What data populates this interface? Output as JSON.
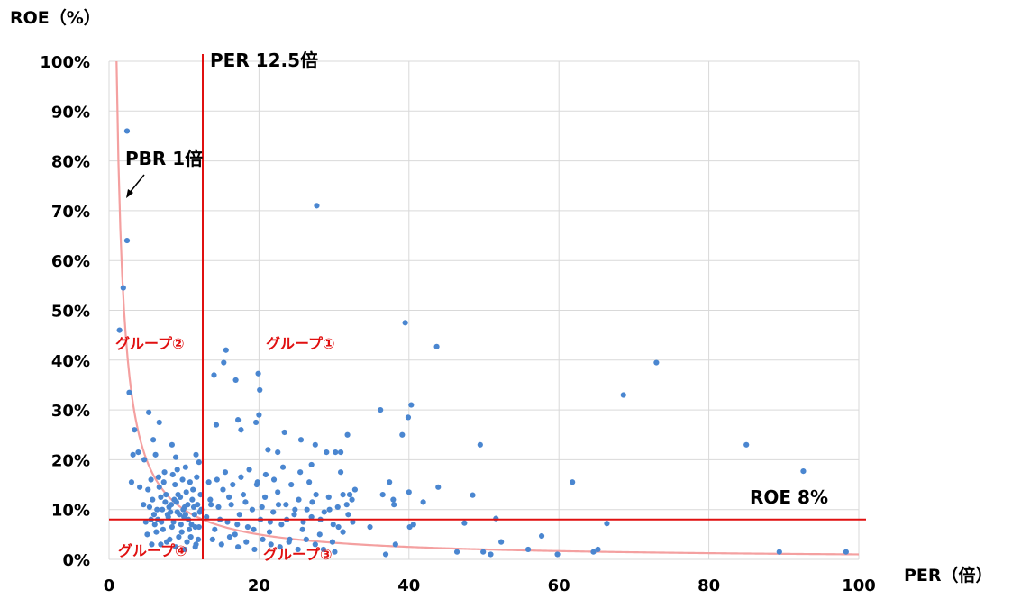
{
  "chart_data": {
    "type": "scatter",
    "title": "",
    "xlabel": "PER（倍）",
    "ylabel": "ROE（%）",
    "xlim": [
      0,
      100
    ],
    "ylim": [
      0,
      100
    ],
    "x_ticks": [
      "0",
      "20",
      "40",
      "60",
      "80",
      "100"
    ],
    "y_ticks": [
      "0%",
      "10%",
      "20%",
      "30%",
      "40%",
      "50%",
      "60%",
      "70%",
      "80%",
      "90%",
      "100%"
    ],
    "grid": true,
    "colors": {
      "points": "#4a86d0",
      "reference_lines": "#e01010",
      "pbr_curve": "#f4a0a0",
      "grid": "#d9d9d9"
    },
    "reference_lines": {
      "vertical": {
        "x": 12.5,
        "label": "PER 12.5倍"
      },
      "horizontal": {
        "y": 8,
        "label": "ROE 8%"
      }
    },
    "curve": {
      "label": "PBR 1倍",
      "relation": "ROE = 100 / PER"
    },
    "group_labels": [
      "グループ①",
      "グループ②",
      "グループ③",
      "グループ④"
    ],
    "series": [
      {
        "points": [
          [
            2.4,
            86
          ],
          [
            27.7,
            71
          ],
          [
            2.4,
            64
          ],
          [
            1.9,
            54.5
          ],
          [
            1.4,
            46
          ],
          [
            39.5,
            47.5
          ],
          [
            43.7,
            42.7
          ],
          [
            73,
            39.5
          ],
          [
            68.6,
            33
          ],
          [
            85,
            23
          ],
          [
            92.6,
            17.7
          ],
          [
            61.8,
            15.5
          ],
          [
            98.3,
            1.5
          ],
          [
            89.4,
            1.5
          ],
          [
            64.6,
            1.5
          ],
          [
            65.2,
            2
          ],
          [
            59.8,
            1
          ],
          [
            55.9,
            2
          ],
          [
            57.7,
            4.7
          ],
          [
            66.4,
            7.2
          ],
          [
            51.6,
            8.2
          ],
          [
            52.3,
            3.5
          ],
          [
            50.9,
            1
          ],
          [
            49.9,
            1.5
          ],
          [
            49.5,
            23
          ],
          [
            48.5,
            12.9
          ],
          [
            47.4,
            7.3
          ],
          [
            46.4,
            1.5
          ],
          [
            2.7,
            33.5
          ],
          [
            3.4,
            26
          ],
          [
            5.3,
            29.5
          ],
          [
            6.7,
            27.5
          ],
          [
            3.2,
            21
          ],
          [
            3.9,
            21.5
          ],
          [
            4.7,
            20
          ],
          [
            5.9,
            24
          ],
          [
            6.2,
            21
          ],
          [
            8.4,
            23
          ],
          [
            8.9,
            20.5
          ],
          [
            10.2,
            18.5
          ],
          [
            11.6,
            21
          ],
          [
            12.0,
            19.5
          ],
          [
            7.4,
            17.5
          ],
          [
            9.1,
            18
          ],
          [
            3.0,
            15.5
          ],
          [
            4.1,
            14.5
          ],
          [
            5.6,
            16
          ],
          [
            14.0,
            37
          ],
          [
            15.3,
            39.5
          ],
          [
            15.6,
            42
          ],
          [
            16.9,
            36
          ],
          [
            14.3,
            27
          ],
          [
            17.2,
            28
          ],
          [
            17.6,
            26
          ],
          [
            19.6,
            27.5
          ],
          [
            20.0,
            29
          ],
          [
            19.9,
            37.3
          ],
          [
            20.1,
            34
          ],
          [
            21.2,
            22
          ],
          [
            22.5,
            21.5
          ],
          [
            23.4,
            25.5
          ],
          [
            25.6,
            24
          ],
          [
            27.0,
            19
          ],
          [
            27.5,
            23
          ],
          [
            29.0,
            21.5
          ],
          [
            30.2,
            21.5
          ],
          [
            30.9,
            21.5
          ],
          [
            31.8,
            25
          ],
          [
            30.9,
            17.5
          ],
          [
            36.2,
            30
          ],
          [
            37.4,
            15.5
          ],
          [
            39.1,
            25
          ],
          [
            39.9,
            28.5
          ],
          [
            40.3,
            31
          ],
          [
            40.0,
            13.5
          ],
          [
            43.9,
            14.5
          ],
          [
            41.9,
            11.5
          ],
          [
            38.0,
            11
          ],
          [
            37.9,
            12
          ],
          [
            36.5,
            13
          ],
          [
            34.8,
            6.5
          ],
          [
            36.9,
            1
          ],
          [
            38.2,
            3
          ],
          [
            40.1,
            6.5
          ],
          [
            40.6,
            7
          ],
          [
            32.4,
            12
          ],
          [
            31.2,
            13
          ],
          [
            32.8,
            14
          ],
          [
            5.1,
            5
          ],
          [
            5.6,
            8
          ],
          [
            6.4,
            10
          ],
          [
            6.9,
            12.5
          ],
          [
            7.2,
            6
          ],
          [
            7.8,
            9
          ],
          [
            8.3,
            11
          ],
          [
            8.6,
            7.5
          ],
          [
            9.2,
            13
          ],
          [
            9.7,
            5.5
          ],
          [
            10.1,
            10.5
          ],
          [
            10.6,
            8
          ],
          [
            11.1,
            12
          ],
          [
            11.5,
            6.5
          ],
          [
            12.1,
            9.5
          ],
          [
            5.8,
            12
          ],
          [
            6.7,
            14.5
          ],
          [
            7.5,
            11.5
          ],
          [
            8.1,
            4
          ],
          [
            8.8,
            15
          ],
          [
            9.4,
            9
          ],
          [
            10.3,
            13.5
          ],
          [
            10.9,
            4.5
          ],
          [
            11.8,
            11
          ],
          [
            6.1,
            7
          ],
          [
            6.9,
            3
          ],
          [
            7.6,
            13
          ],
          [
            8.4,
            6.5
          ],
          [
            9.0,
            11.5
          ],
          [
            9.6,
            7
          ],
          [
            10.4,
            3.5
          ],
          [
            11.2,
            14
          ],
          [
            11.9,
            4
          ],
          [
            12.2,
            13
          ],
          [
            5.4,
            10.5
          ],
          [
            6.3,
            5.5
          ],
          [
            7.1,
            10
          ],
          [
            7.9,
            8.5
          ],
          [
            8.7,
            12
          ],
          [
            9.3,
            4.5
          ],
          [
            9.9,
            10
          ],
          [
            10.7,
            6
          ],
          [
            11.4,
            9
          ],
          [
            12.0,
            6.5
          ],
          [
            7.3,
            15.5
          ],
          [
            8.5,
            17
          ],
          [
            9.8,
            16
          ],
          [
            10.8,
            15.5
          ],
          [
            11.7,
            16.5
          ],
          [
            4.6,
            11
          ],
          [
            5.2,
            14
          ],
          [
            6.0,
            9
          ],
          [
            4.9,
            7.5
          ],
          [
            6.6,
            16.5
          ],
          [
            7.7,
            3.5
          ],
          [
            8.2,
            9.5
          ],
          [
            9.5,
            12.5
          ],
          [
            10.0,
            8.5
          ],
          [
            10.5,
            11
          ],
          [
            11.0,
            7
          ],
          [
            11.6,
            3
          ],
          [
            12.3,
            10
          ],
          [
            6.5,
            8
          ],
          [
            7.0,
            7.5
          ],
          [
            8.0,
            10.5
          ],
          [
            9.1,
            9.5
          ],
          [
            10.2,
            9
          ],
          [
            11.3,
            10.5
          ],
          [
            8.9,
            2.5
          ],
          [
            10.1,
            2
          ],
          [
            11.5,
            2.5
          ],
          [
            5.7,
            3
          ],
          [
            13.0,
            8.5
          ],
          [
            13.5,
            12
          ],
          [
            14.1,
            6
          ],
          [
            14.6,
            10.5
          ],
          [
            15.2,
            14
          ],
          [
            15.8,
            7.5
          ],
          [
            16.3,
            11
          ],
          [
            16.8,
            5
          ],
          [
            17.4,
            9
          ],
          [
            17.9,
            13
          ],
          [
            18.5,
            6.5
          ],
          [
            19.1,
            10
          ],
          [
            19.7,
            15
          ],
          [
            20.2,
            8
          ],
          [
            20.8,
            12.5
          ],
          [
            21.4,
            5.5
          ],
          [
            21.9,
            9.5
          ],
          [
            22.5,
            13.5
          ],
          [
            23.0,
            7
          ],
          [
            23.6,
            11
          ],
          [
            24.1,
            4
          ],
          [
            24.7,
            9
          ],
          [
            25.3,
            12
          ],
          [
            25.8,
            6
          ],
          [
            26.4,
            10
          ],
          [
            27.0,
            8.5
          ],
          [
            27.6,
            13
          ],
          [
            28.1,
            5
          ],
          [
            28.7,
            9.5
          ],
          [
            29.3,
            12.5
          ],
          [
            29.9,
            7
          ],
          [
            30.5,
            10.5
          ],
          [
            31.2,
            5.5
          ],
          [
            31.9,
            9
          ],
          [
            32.5,
            7.5
          ],
          [
            13.3,
            15.5
          ],
          [
            14.4,
            16
          ],
          [
            15.5,
            17.5
          ],
          [
            16.5,
            15
          ],
          [
            17.6,
            16.5
          ],
          [
            18.7,
            18
          ],
          [
            19.8,
            15.5
          ],
          [
            20.9,
            17
          ],
          [
            22.0,
            16
          ],
          [
            23.2,
            18.5
          ],
          [
            24.3,
            15
          ],
          [
            25.5,
            17.5
          ],
          [
            26.7,
            15.5
          ],
          [
            13.8,
            4
          ],
          [
            15.0,
            3
          ],
          [
            16.1,
            4.5
          ],
          [
            17.2,
            2.5
          ],
          [
            18.3,
            3.5
          ],
          [
            19.4,
            2
          ],
          [
            20.5,
            4
          ],
          [
            21.6,
            3
          ],
          [
            22.8,
            2.5
          ],
          [
            24.0,
            3.5
          ],
          [
            25.2,
            2
          ],
          [
            26.3,
            4
          ],
          [
            27.5,
            3
          ],
          [
            28.6,
            2
          ],
          [
            29.8,
            3.5
          ],
          [
            30.1,
            1.5
          ],
          [
            13.6,
            11
          ],
          [
            14.8,
            8
          ],
          [
            16.0,
            12.5
          ],
          [
            17.1,
            7
          ],
          [
            18.2,
            11.5
          ],
          [
            19.3,
            6
          ],
          [
            20.4,
            10.5
          ],
          [
            21.5,
            7.5
          ],
          [
            22.6,
            11
          ],
          [
            23.7,
            8
          ],
          [
            24.8,
            10
          ],
          [
            25.9,
            7.5
          ],
          [
            27.1,
            11.5
          ],
          [
            28.2,
            8
          ],
          [
            29.4,
            10
          ],
          [
            30.6,
            6.5
          ],
          [
            31.7,
            11
          ],
          [
            32.1,
            13
          ]
        ]
      }
    ]
  },
  "annotations": {
    "per_line_label": "PER 12.5倍",
    "roe_line_label": "ROE 8%",
    "pbr_label": "PBR 1倍",
    "group1": "グループ①",
    "group2": "グループ②",
    "group3": "グループ③",
    "group4": "グループ④"
  }
}
